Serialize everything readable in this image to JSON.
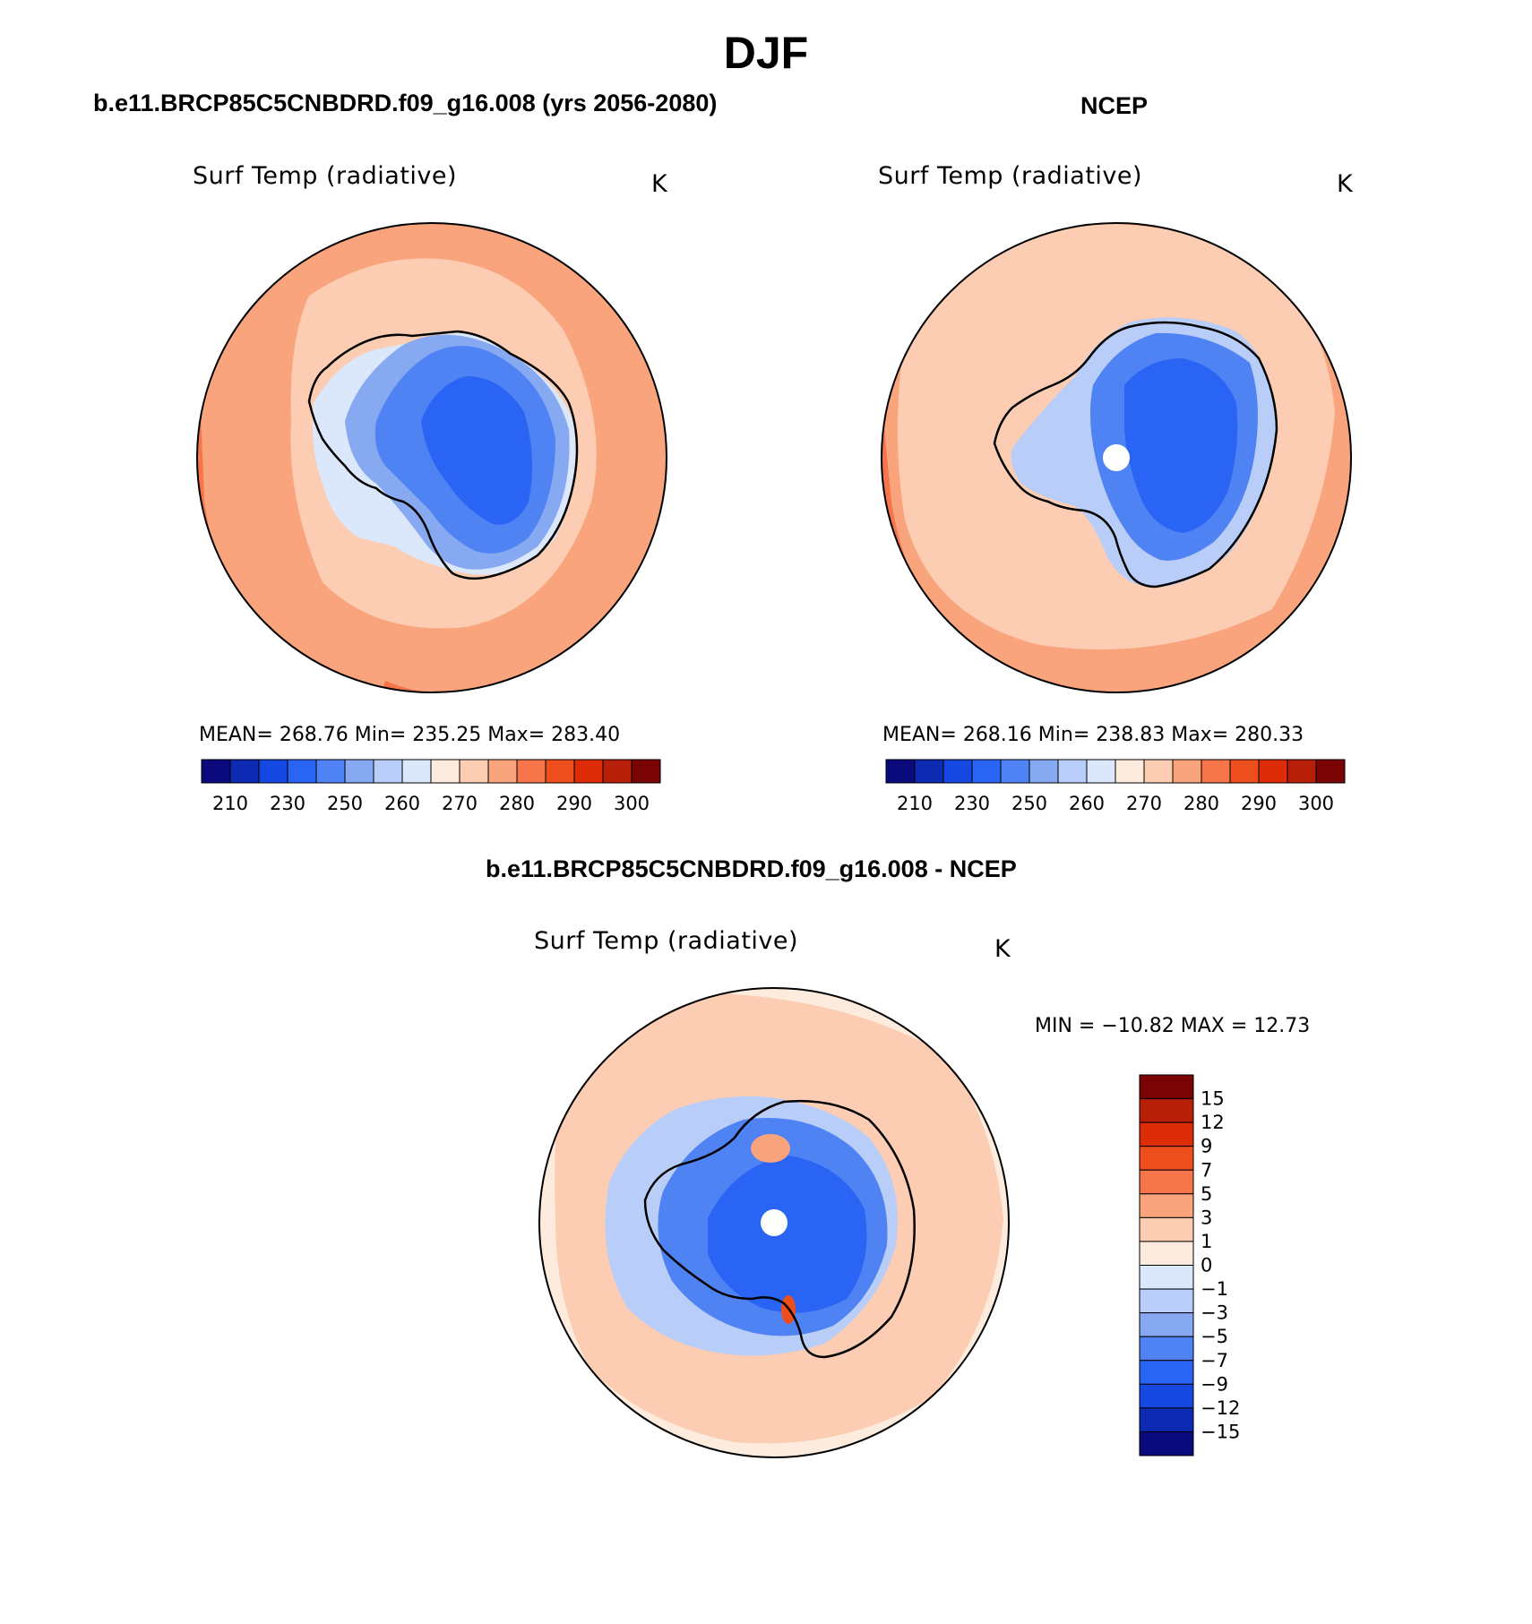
{
  "figure_title": "DJF",
  "panels": [
    {
      "case_title": "b.e11.BRCP85C5CNBDRD.f09_g16.008 (yrs 2056-2080)",
      "plot_title": "Surf Temp (radiative)",
      "units": "K",
      "stats": "MEAN= 268.76   Min= 235.25   Max= 283.40"
    },
    {
      "case_title": "NCEP",
      "plot_title": "Surf Temp (radiative)",
      "units": "K",
      "stats": "MEAN= 268.16   Min= 238.83   Max= 280.33"
    },
    {
      "case_title": "b.e11.BRCP85C5CNBDRD.f09_g16.008 - NCEP",
      "plot_title": "Surf Temp (radiative)",
      "units": "K",
      "stats": "MIN = −10.82  MAX =   12.73"
    }
  ],
  "abs_colorbar": {
    "labels": [
      "210",
      "230",
      "250",
      "260",
      "270",
      "280",
      "290",
      "300"
    ],
    "colors": [
      "#0a0a7d",
      "#0d2ab3",
      "#1448e0",
      "#2a64f5",
      "#4f82f3",
      "#86a9f2",
      "#b8cdf7",
      "#dbe7fb",
      "#fdebdd",
      "#fccdb2",
      "#f9a47d",
      "#f6754a",
      "#ee4d1c",
      "#dd2d08",
      "#b81f08",
      "#7a0404"
    ]
  },
  "diff_colorbar": {
    "labels": [
      "15",
      "12",
      "9",
      "7",
      "5",
      "3",
      "1",
      "0",
      "−1",
      "−3",
      "−5",
      "−7",
      "−9",
      "−12",
      "−15"
    ],
    "colors_top_to_bottom": [
      "#7a0404",
      "#b81f08",
      "#dd2d08",
      "#ee4d1c",
      "#f6754a",
      "#f9a47d",
      "#fccdb2",
      "#fdebdd",
      "#dbe7fb",
      "#b8cdf7",
      "#86a9f2",
      "#4f82f3",
      "#2a64f5",
      "#1448e0",
      "#0d2ab3",
      "#0a0a7d"
    ]
  }
}
